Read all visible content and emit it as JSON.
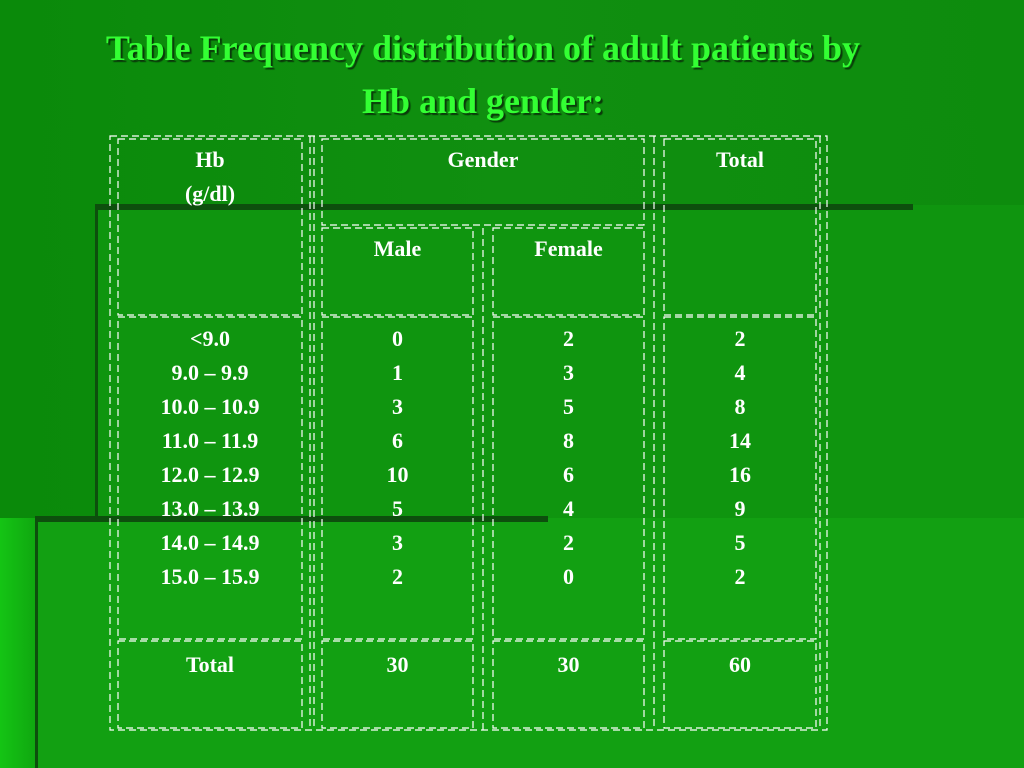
{
  "title": {
    "line1": "Table  Frequency distribution of adult patients by",
    "line2": "Hb and gender:"
  },
  "table": {
    "headers": {
      "hb_line1": "Hb",
      "hb_line2": "(g/dl)",
      "gender": "Gender",
      "total": "Total",
      "male": "Male",
      "female": "Female"
    },
    "rows": [
      {
        "hb": "<9.0",
        "male": "0",
        "female": "2",
        "total": "2"
      },
      {
        "hb": "9.0 – 9.9",
        "male": "1",
        "female": "3",
        "total": "4"
      },
      {
        "hb": "10.0 – 10.9",
        "male": "3",
        "female": "5",
        "total": "8"
      },
      {
        "hb": "11.0 – 11.9",
        "male": "6",
        "female": "8",
        "total": "14"
      },
      {
        "hb": "12.0 – 12.9",
        "male": "10",
        "female": "6",
        "total": "16"
      },
      {
        "hb": "13.0 – 13.9",
        "male": "5",
        "female": "4",
        "total": "9"
      },
      {
        "hb": "14.0 – 14.9",
        "male": "3",
        "female": "2",
        "total": "5"
      },
      {
        "hb": "15.0 – 15.9",
        "male": "2",
        "female": "0",
        "total": "2"
      }
    ],
    "totals": {
      "label": "Total",
      "male": "30",
      "female": "30",
      "total": "60"
    }
  }
}
